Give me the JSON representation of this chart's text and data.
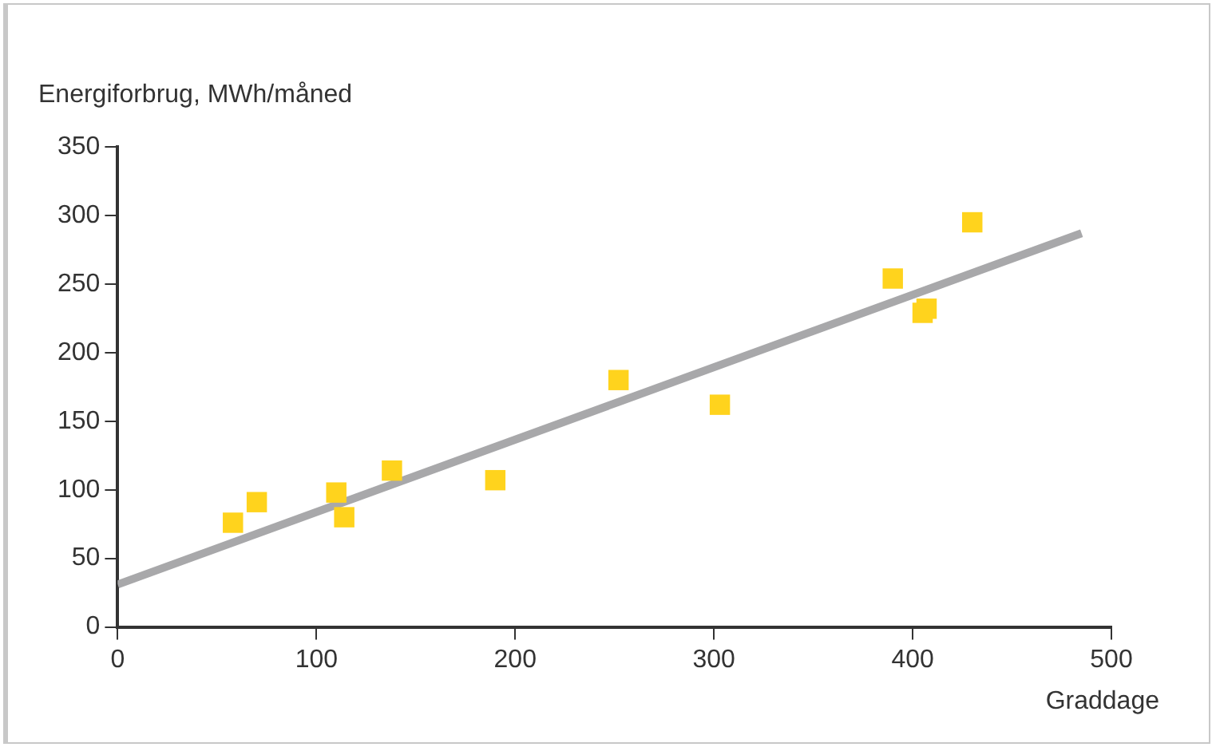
{
  "chart_data": {
    "type": "scatter",
    "xlabel": "Graddage",
    "ylabel": "Energiforbrug, MWh/måned",
    "xlim": [
      0,
      500
    ],
    "xticks": [
      0,
      100,
      200,
      300,
      400,
      500
    ],
    "ylim": [
      0,
      350
    ],
    "yticks": [
      0,
      50,
      100,
      150,
      200,
      250,
      300,
      350
    ],
    "grid": false,
    "series": [
      {
        "marker": "square",
        "color": "#ffd31d",
        "x": [
          58,
          70,
          110,
          114,
          138,
          190,
          252,
          303,
          390,
          407,
          405,
          430
        ],
        "values": [
          76,
          91,
          98,
          80,
          114,
          107,
          180,
          162,
          254,
          232,
          229,
          295
        ]
      },
      {
        "type": "line",
        "marker": "none",
        "color": "#a8a8aa",
        "x": [
          0,
          485
        ],
        "values": [
          31,
          287
        ]
      }
    ]
  }
}
